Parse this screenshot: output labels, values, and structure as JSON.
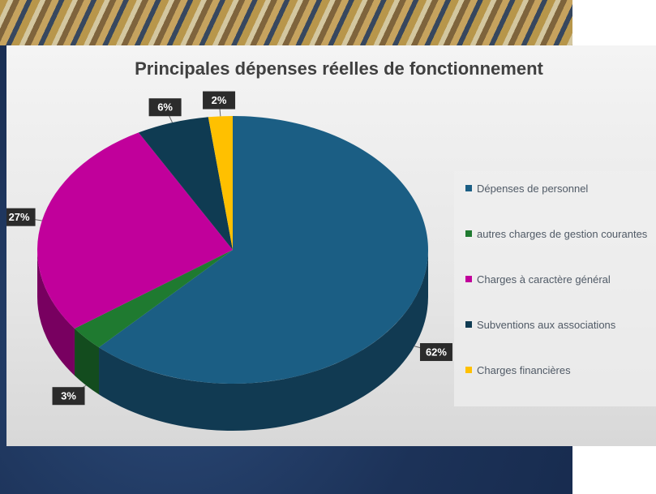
{
  "chart_data": {
    "type": "pie",
    "title": "Principales dépenses réelles de fonctionnement",
    "categories": [
      "Dépenses de personnel",
      "autres charges de gestion courantes",
      "Charges à caractère général",
      "Subventions aux associations",
      "Charges financières"
    ],
    "values": [
      62,
      3,
      27,
      6,
      2
    ],
    "value_labels": [
      "62%",
      "3%",
      "27%",
      "6%",
      "2%"
    ],
    "colors": [
      "#1b5e84",
      "#1f7a30",
      "#c1009b",
      "#0f3b52",
      "#ffc000"
    ],
    "legend": "right"
  }
}
